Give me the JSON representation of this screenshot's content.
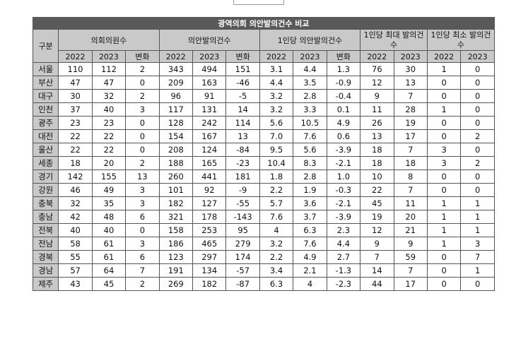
{
  "title": "광역의회 의안발의건수 비교",
  "headers": {
    "region": "구분",
    "groups": [
      "의회의원수",
      "의안발의건수",
      "1인당 의안발의건수",
      "1인당 최대 발의건수",
      "1인당 최소 발의건수"
    ],
    "sub": [
      "2022",
      "2023",
      "변화",
      "2022",
      "2023",
      "변화",
      "2022",
      "2023",
      "변화",
      "2022",
      "2023",
      "2022",
      "2023"
    ]
  },
  "rows": [
    {
      "region": "서울",
      "cells": [
        "110",
        "112",
        "2",
        "343",
        "494",
        "151",
        "3.1",
        "4.4",
        "1.3",
        "76",
        "30",
        "1",
        "0"
      ]
    },
    {
      "region": "부산",
      "cells": [
        "47",
        "47",
        "0",
        "209",
        "163",
        "-46",
        "4.4",
        "3.5",
        "-0.9",
        "12",
        "13",
        "0",
        "0"
      ]
    },
    {
      "region": "대구",
      "cells": [
        "30",
        "32",
        "2",
        "96",
        "91",
        "-5",
        "3.2",
        "2.8",
        "-0.4",
        "9",
        "7",
        "0",
        "0"
      ]
    },
    {
      "region": "인천",
      "cells": [
        "37",
        "40",
        "3",
        "117",
        "131",
        "14",
        "3.2",
        "3.3",
        "0.1",
        "11",
        "28",
        "1",
        "0"
      ]
    },
    {
      "region": "광주",
      "cells": [
        "23",
        "23",
        "0",
        "128",
        "242",
        "114",
        "5.6",
        "10.5",
        "4.9",
        "26",
        "19",
        "0",
        "0"
      ]
    },
    {
      "region": "대전",
      "cells": [
        "22",
        "22",
        "0",
        "154",
        "167",
        "13",
        "7.0",
        "7.6",
        "0.6",
        "13",
        "17",
        "0",
        "2"
      ]
    },
    {
      "region": "울산",
      "cells": [
        "22",
        "22",
        "0",
        "208",
        "124",
        "-84",
        "9.5",
        "5.6",
        "-3.9",
        "18",
        "7",
        "3",
        "0"
      ]
    },
    {
      "region": "세종",
      "cells": [
        "18",
        "20",
        "2",
        "188",
        "165",
        "-23",
        "10.4",
        "8.3",
        "-2.1",
        "18",
        "18",
        "3",
        "2"
      ]
    },
    {
      "region": "경기",
      "cells": [
        "142",
        "155",
        "13",
        "260",
        "441",
        "181",
        "1.8",
        "2.8",
        "1.0",
        "10",
        "8",
        "0",
        "0"
      ]
    },
    {
      "region": "강원",
      "cells": [
        "46",
        "49",
        "3",
        "101",
        "92",
        "-9",
        "2.2",
        "1.9",
        "-0.3",
        "22",
        "7",
        "0",
        "0"
      ]
    },
    {
      "region": "충북",
      "cells": [
        "32",
        "35",
        "3",
        "182",
        "127",
        "-55",
        "5.7",
        "3.6",
        "-2.1",
        "45",
        "11",
        "1",
        "1"
      ]
    },
    {
      "region": "충남",
      "cells": [
        "42",
        "48",
        "6",
        "321",
        "178",
        "-143",
        "7.6",
        "3.7",
        "-3.9",
        "19",
        "20",
        "1",
        "1"
      ]
    },
    {
      "region": "전북",
      "cells": [
        "40",
        "40",
        "0",
        "158",
        "253",
        "95",
        "4",
        "6.3",
        "2.3",
        "12",
        "21",
        "1",
        "1"
      ]
    },
    {
      "region": "전남",
      "cells": [
        "58",
        "61",
        "3",
        "186",
        "465",
        "279",
        "3.2",
        "7.6",
        "4.4",
        "9",
        "9",
        "1",
        "3"
      ]
    },
    {
      "region": "경북",
      "cells": [
        "55",
        "61",
        "6",
        "123",
        "297",
        "174",
        "2.2",
        "4.9",
        "2.7",
        "7",
        "59",
        "0",
        "7"
      ]
    },
    {
      "region": "경남",
      "cells": [
        "57",
        "64",
        "7",
        "191",
        "134",
        "-57",
        "3.4",
        "2.1",
        "-1.3",
        "14",
        "7",
        "0",
        "1"
      ]
    },
    {
      "region": "제주",
      "cells": [
        "43",
        "45",
        "2",
        "269",
        "182",
        "-87",
        "6.3",
        "4",
        "-2.3",
        "44",
        "17",
        "0",
        "0"
      ]
    }
  ]
}
